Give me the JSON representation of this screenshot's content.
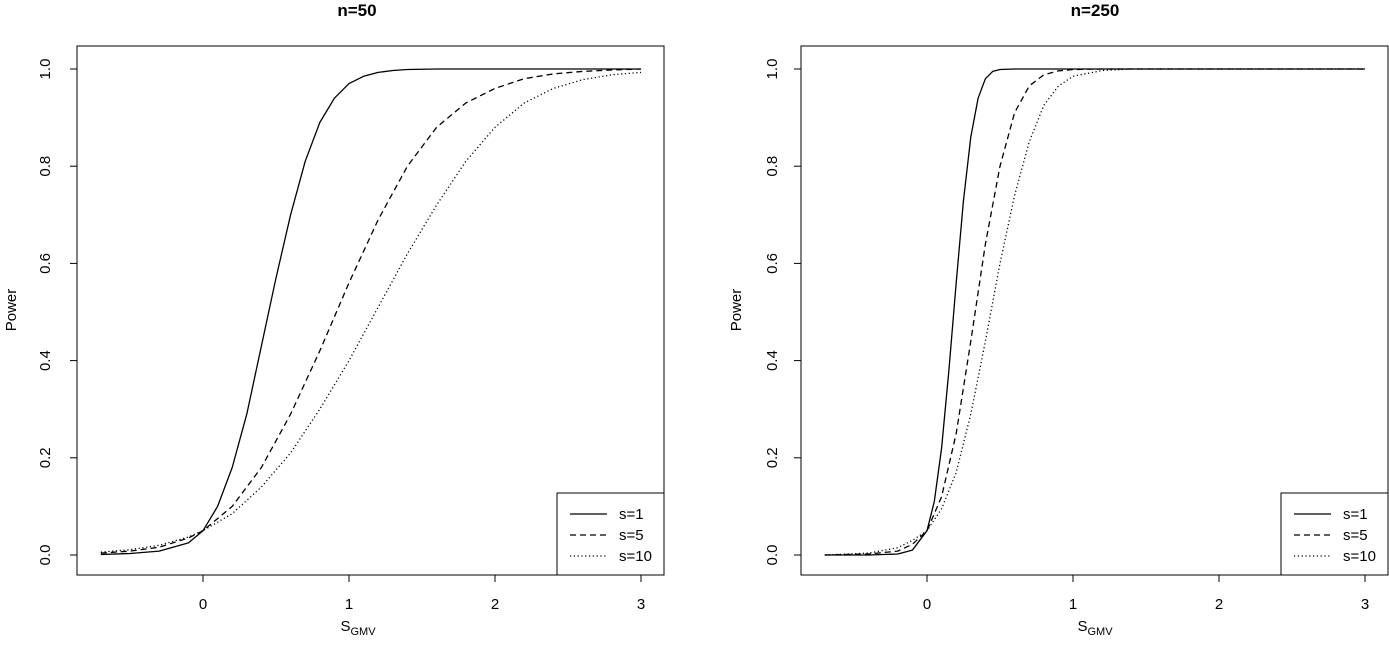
{
  "chart_data": [
    {
      "type": "line",
      "title": "n=50",
      "xlabel": "S",
      "xlabel_sub": "GMV",
      "ylabel": "Power",
      "xlim": [
        -0.7,
        3
      ],
      "ylim": [
        0,
        1
      ],
      "xticks": [
        "0",
        "1",
        "2",
        "3"
      ],
      "yticks": [
        "0.0",
        "0.2",
        "0.4",
        "0.6",
        "0.8",
        "1.0"
      ],
      "legend_position": "bottom-right",
      "series": [
        {
          "name": "s=1",
          "linestyle": "solid",
          "x": [
            -0.7,
            -0.5,
            -0.3,
            -0.1,
            0,
            0.1,
            0.2,
            0.3,
            0.4,
            0.5,
            0.6,
            0.7,
            0.8,
            0.9,
            1.0,
            1.1,
            1.2,
            1.3,
            1.4,
            1.6,
            2.0,
            2.5,
            3.0
          ],
          "y": [
            0.001,
            0.003,
            0.008,
            0.025,
            0.05,
            0.1,
            0.18,
            0.29,
            0.43,
            0.57,
            0.7,
            0.81,
            0.89,
            0.94,
            0.97,
            0.985,
            0.993,
            0.997,
            0.999,
            1.0,
            1.0,
            1.0,
            1.0
          ]
        },
        {
          "name": "s=5",
          "linestyle": "dashed",
          "x": [
            -0.7,
            -0.5,
            -0.3,
            -0.1,
            0,
            0.2,
            0.4,
            0.6,
            0.8,
            1.0,
            1.2,
            1.4,
            1.6,
            1.8,
            2.0,
            2.2,
            2.4,
            2.6,
            2.8,
            3.0
          ],
          "y": [
            0.004,
            0.008,
            0.016,
            0.035,
            0.05,
            0.1,
            0.18,
            0.29,
            0.42,
            0.56,
            0.69,
            0.8,
            0.88,
            0.93,
            0.96,
            0.98,
            0.99,
            0.995,
            0.998,
            1.0
          ]
        },
        {
          "name": "s=10",
          "linestyle": "dotted",
          "x": [
            -0.7,
            -0.5,
            -0.3,
            -0.1,
            0,
            0.2,
            0.4,
            0.6,
            0.8,
            1.0,
            1.2,
            1.4,
            1.6,
            1.8,
            2.0,
            2.2,
            2.4,
            2.6,
            2.8,
            3.0
          ],
          "y": [
            0.006,
            0.011,
            0.02,
            0.037,
            0.05,
            0.085,
            0.14,
            0.21,
            0.3,
            0.4,
            0.51,
            0.62,
            0.72,
            0.81,
            0.88,
            0.93,
            0.96,
            0.978,
            0.988,
            0.993
          ]
        }
      ],
      "legend": [
        {
          "label": "s=1",
          "linestyle": "solid"
        },
        {
          "label": "s=5",
          "linestyle": "dashed"
        },
        {
          "label": "s=10",
          "linestyle": "dotted"
        }
      ]
    },
    {
      "type": "line",
      "title": "n=250",
      "xlabel": "S",
      "xlabel_sub": "GMV",
      "ylabel": "Power",
      "xlim": [
        -0.7,
        3
      ],
      "ylim": [
        0,
        1
      ],
      "xticks": [
        "0",
        "1",
        "2",
        "3"
      ],
      "yticks": [
        "0.0",
        "0.2",
        "0.4",
        "0.6",
        "0.8",
        "1.0"
      ],
      "legend_position": "bottom-right",
      "series": [
        {
          "name": "s=1",
          "linestyle": "solid",
          "x": [
            -0.7,
            -0.4,
            -0.2,
            -0.1,
            0,
            0.05,
            0.1,
            0.15,
            0.2,
            0.25,
            0.3,
            0.35,
            0.4,
            0.45,
            0.5,
            0.6,
            0.8,
            1.0,
            3.0
          ],
          "y": [
            0.0,
            0.0,
            0.002,
            0.01,
            0.05,
            0.11,
            0.22,
            0.38,
            0.56,
            0.73,
            0.86,
            0.94,
            0.98,
            0.995,
            0.999,
            1.0,
            1.0,
            1.0,
            1.0
          ]
        },
        {
          "name": "s=5",
          "linestyle": "dashed",
          "x": [
            -0.7,
            -0.4,
            -0.2,
            -0.1,
            0,
            0.1,
            0.2,
            0.3,
            0.4,
            0.5,
            0.6,
            0.7,
            0.8,
            0.9,
            1.0,
            1.2,
            3.0
          ],
          "y": [
            0.0,
            0.002,
            0.008,
            0.022,
            0.05,
            0.12,
            0.25,
            0.44,
            0.64,
            0.8,
            0.91,
            0.965,
            0.988,
            0.996,
            0.999,
            1.0,
            1.0
          ]
        },
        {
          "name": "s=10",
          "linestyle": "dotted",
          "x": [
            -0.7,
            -0.4,
            -0.2,
            -0.1,
            0,
            0.1,
            0.2,
            0.3,
            0.4,
            0.5,
            0.6,
            0.7,
            0.8,
            0.9,
            1.0,
            1.2,
            1.4,
            3.0
          ],
          "y": [
            0.0,
            0.004,
            0.015,
            0.03,
            0.05,
            0.095,
            0.17,
            0.29,
            0.44,
            0.6,
            0.74,
            0.85,
            0.925,
            0.965,
            0.985,
            0.997,
            1.0,
            1.0
          ]
        }
      ],
      "legend": [
        {
          "label": "s=1",
          "linestyle": "solid"
        },
        {
          "label": "s=5",
          "linestyle": "dashed"
        },
        {
          "label": "s=10",
          "linestyle": "dotted"
        }
      ]
    }
  ]
}
